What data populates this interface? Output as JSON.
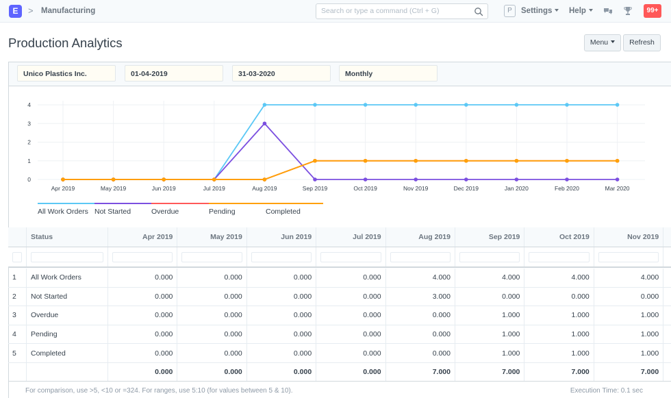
{
  "navbar": {
    "logo_letter": "E",
    "breadcrumb_separator": ">",
    "breadcrumb": "Manufacturing",
    "search_placeholder": "Search or type a command (Ctrl + G)",
    "avatar_letter": "P",
    "settings_label": "Settings",
    "help_label": "Help",
    "notification_count": "99+"
  },
  "page": {
    "title": "Production Analytics",
    "menu_label": "Menu",
    "refresh_label": "Refresh"
  },
  "filters": {
    "company": "Unico Plastics Inc.",
    "from_date": "01-04-2019",
    "to_date": "31-03-2020",
    "range": "Monthly"
  },
  "chart_data": {
    "type": "line",
    "categories": [
      "Apr 2019",
      "May 2019",
      "Jun 2019",
      "Jul 2019",
      "Aug 2019",
      "Sep 2019",
      "Oct 2019",
      "Nov 2019",
      "Dec 2019",
      "Jan 2020",
      "Feb 2020",
      "Mar 2020"
    ],
    "yticks": [
      0,
      1,
      2,
      3,
      4
    ],
    "ylim": [
      0,
      4
    ],
    "grid": true,
    "legend_position": "bottom-left",
    "series": [
      {
        "name": "All Work Orders",
        "color": "#5bc8f5",
        "values": [
          0,
          0,
          0,
          0,
          4,
          4,
          4,
          4,
          4,
          4,
          4,
          4
        ]
      },
      {
        "name": "Not Started",
        "color": "#7b4fe0",
        "values": [
          0,
          0,
          0,
          0,
          3,
          0,
          0,
          0,
          0,
          0,
          0,
          0
        ]
      },
      {
        "name": "Overdue",
        "color": "#ff5858",
        "values": [
          0,
          0,
          0,
          0,
          0,
          1,
          1,
          1,
          1,
          1,
          1,
          1
        ]
      },
      {
        "name": "Pending",
        "color": "#ffa00a",
        "values": [
          0,
          0,
          0,
          0,
          0,
          1,
          1,
          1,
          1,
          1,
          1,
          1
        ]
      },
      {
        "name": "Completed",
        "color": "#ffa00a",
        "values": [
          0,
          0,
          0,
          0,
          0,
          1,
          1,
          1,
          1,
          1,
          1,
          1
        ]
      }
    ]
  },
  "table": {
    "status_header": "Status",
    "columns": [
      "Apr 2019",
      "May 2019",
      "Jun 2019",
      "Jul 2019",
      "Aug 2019",
      "Sep 2019",
      "Oct 2019",
      "Nov 2019"
    ],
    "rows": [
      {
        "index": "1",
        "status": "All Work Orders",
        "values": [
          "0.000",
          "0.000",
          "0.000",
          "0.000",
          "4.000",
          "4.000",
          "4.000",
          "4.000"
        ]
      },
      {
        "index": "2",
        "status": "Not Started",
        "values": [
          "0.000",
          "0.000",
          "0.000",
          "0.000",
          "3.000",
          "0.000",
          "0.000",
          "0.000"
        ]
      },
      {
        "index": "3",
        "status": "Overdue",
        "values": [
          "0.000",
          "0.000",
          "0.000",
          "0.000",
          "0.000",
          "1.000",
          "1.000",
          "1.000"
        ]
      },
      {
        "index": "4",
        "status": "Pending",
        "values": [
          "0.000",
          "0.000",
          "0.000",
          "0.000",
          "0.000",
          "1.000",
          "1.000",
          "1.000"
        ]
      },
      {
        "index": "5",
        "status": "Completed",
        "values": [
          "0.000",
          "0.000",
          "0.000",
          "0.000",
          "0.000",
          "1.000",
          "1.000",
          "1.000"
        ]
      }
    ],
    "totals": [
      "0.000",
      "0.000",
      "0.000",
      "0.000",
      "7.000",
      "7.000",
      "7.000",
      "7.000"
    ]
  },
  "footer": {
    "note": "For comparison, use >5, <10 or =324. For ranges, use 5:10 (for values between 5 & 10).",
    "execution_time": "Execution Time: 0.1 sec"
  }
}
